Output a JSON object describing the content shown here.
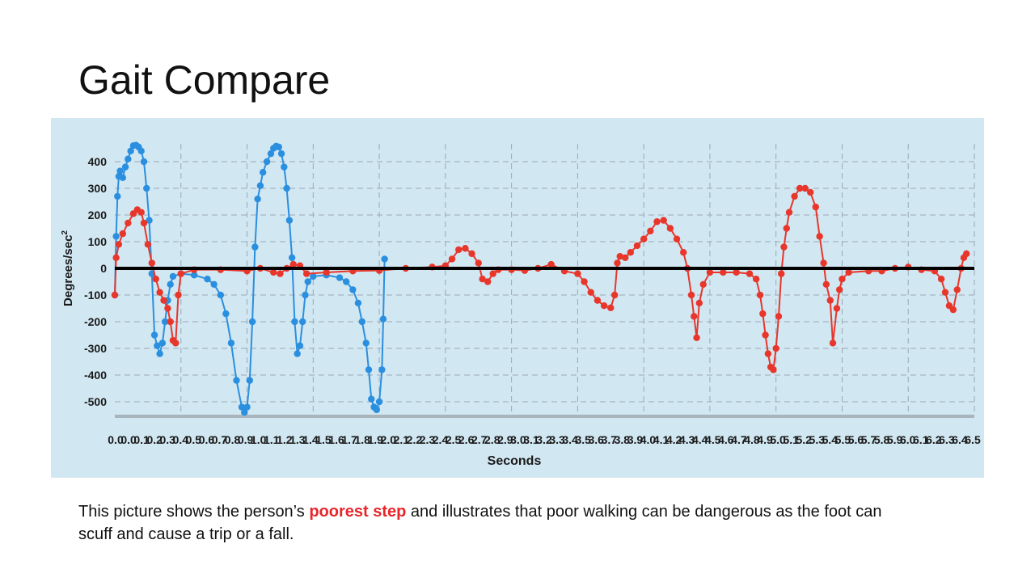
{
  "slide": {
    "title": "Gait Compare",
    "caption_before": "This picture shows the person’s ",
    "caption_highlight": "poorest step",
    "caption_after": " and illustrates that poor walking can be dangerous as the foot  can scuff and cause a trip or a fall."
  },
  "colors": {
    "panel_background": "#d1e7f2",
    "series_blue": "#2b8fe0",
    "series_red": "#e8362b",
    "zero_line": "#000000",
    "grid": "#9aaab4",
    "caption_highlight": "#e8262b"
  },
  "chart_data": {
    "type": "scatter",
    "xlabel": "Seconds",
    "ylabel": "Degrees/sec²",
    "ylabel_main": "Degrees/sec",
    "ylabel_sup": "2",
    "ylim": [
      -550,
      480
    ],
    "xlim": [
      0,
      6.5
    ],
    "yticks": [
      400,
      300,
      200,
      100,
      0,
      -100,
      -200,
      -300,
      -400,
      -500
    ],
    "ytick_labels": [
      "400",
      "300",
      "200",
      "100",
      "0",
      "-100",
      "-200",
      "-300",
      "-400",
      "-500"
    ],
    "xtick_labels": [
      "0.0",
      "0.0",
      "0.1",
      "0.2",
      "0.3",
      "0.4",
      "0.5",
      "0.6",
      "0.7",
      "0.8",
      "0.9",
      "1.0",
      "1.1",
      "1.2",
      "1.3",
      "1.4",
      "1.5",
      "1.6",
      "1.7",
      "1.8",
      "1.9",
      "2.0",
      "2.1",
      "2.2",
      "2.3",
      "2.4",
      "2.5",
      "2.6",
      "2.7",
      "2.8",
      "2.9",
      "3.0",
      "3.1",
      "3.2",
      "3.3",
      "3.4",
      "3.5",
      "3.6",
      "3.7",
      "3.8",
      "3.9",
      "4.0",
      "4.1",
      "4.2",
      "4.3",
      "4.4",
      "4.5",
      "4.6",
      "4.7",
      "4.8",
      "4.9",
      "5.0",
      "5.1",
      "5.2",
      "5.3",
      "5.4",
      "5.5",
      "5.6",
      "5.7",
      "5.8",
      "5.9",
      "6.0",
      "6.1",
      "6.2",
      "6.3",
      "6.4",
      "6.5"
    ],
    "grid": true,
    "zero_line": true,
    "series": [
      {
        "color": "#2b8fe0",
        "points": [
          [
            0.0,
            -100
          ],
          [
            0.01,
            120
          ],
          [
            0.02,
            270
          ],
          [
            0.03,
            345
          ],
          [
            0.04,
            365
          ],
          [
            0.06,
            340
          ],
          [
            0.08,
            380
          ],
          [
            0.1,
            410
          ],
          [
            0.12,
            440
          ],
          [
            0.14,
            460
          ],
          [
            0.16,
            462
          ],
          [
            0.18,
            455
          ],
          [
            0.2,
            440
          ],
          [
            0.22,
            400
          ],
          [
            0.24,
            300
          ],
          [
            0.26,
            180
          ],
          [
            0.28,
            -20
          ],
          [
            0.3,
            -250
          ],
          [
            0.32,
            -290
          ],
          [
            0.34,
            -320
          ],
          [
            0.36,
            -280
          ],
          [
            0.38,
            -200
          ],
          [
            0.4,
            -120
          ],
          [
            0.42,
            -60
          ],
          [
            0.44,
            -30
          ],
          [
            0.5,
            -20
          ],
          [
            0.6,
            -25
          ],
          [
            0.7,
            -40
          ],
          [
            0.75,
            -60
          ],
          [
            0.8,
            -100
          ],
          [
            0.84,
            -170
          ],
          [
            0.88,
            -280
          ],
          [
            0.92,
            -420
          ],
          [
            0.96,
            -520
          ],
          [
            0.98,
            -540
          ],
          [
            1.0,
            -520
          ],
          [
            1.02,
            -420
          ],
          [
            1.04,
            -200
          ],
          [
            1.06,
            80
          ],
          [
            1.08,
            260
          ],
          [
            1.1,
            310
          ],
          [
            1.12,
            360
          ],
          [
            1.15,
            400
          ],
          [
            1.18,
            430
          ],
          [
            1.2,
            450
          ],
          [
            1.22,
            458
          ],
          [
            1.24,
            455
          ],
          [
            1.26,
            430
          ],
          [
            1.28,
            380
          ],
          [
            1.3,
            300
          ],
          [
            1.32,
            180
          ],
          [
            1.34,
            40
          ],
          [
            1.36,
            -200
          ],
          [
            1.38,
            -320
          ],
          [
            1.4,
            -290
          ],
          [
            1.42,
            -200
          ],
          [
            1.44,
            -100
          ],
          [
            1.46,
            -50
          ],
          [
            1.5,
            -30
          ],
          [
            1.6,
            -25
          ],
          [
            1.7,
            -35
          ],
          [
            1.75,
            -50
          ],
          [
            1.8,
            -80
          ],
          [
            1.84,
            -130
          ],
          [
            1.87,
            -200
          ],
          [
            1.9,
            -280
          ],
          [
            1.92,
            -380
          ],
          [
            1.94,
            -490
          ],
          [
            1.96,
            -520
          ],
          [
            1.98,
            -530
          ],
          [
            2.0,
            -500
          ],
          [
            2.02,
            -380
          ],
          [
            2.03,
            -190
          ],
          [
            2.04,
            35
          ]
        ]
      },
      {
        "color": "#e8362b",
        "points": [
          [
            0.0,
            -100
          ],
          [
            0.01,
            40
          ],
          [
            0.03,
            90
          ],
          [
            0.06,
            130
          ],
          [
            0.1,
            170
          ],
          [
            0.14,
            205
          ],
          [
            0.17,
            220
          ],
          [
            0.2,
            210
          ],
          [
            0.22,
            170
          ],
          [
            0.25,
            90
          ],
          [
            0.28,
            20
          ],
          [
            0.31,
            -40
          ],
          [
            0.34,
            -90
          ],
          [
            0.37,
            -120
          ],
          [
            0.4,
            -150
          ],
          [
            0.42,
            -200
          ],
          [
            0.44,
            -270
          ],
          [
            0.46,
            -280
          ],
          [
            0.48,
            -100
          ],
          [
            0.5,
            -20
          ],
          [
            0.6,
            -5
          ],
          [
            0.8,
            -5
          ],
          [
            1.0,
            -10
          ],
          [
            1.1,
            0
          ],
          [
            1.2,
            -15
          ],
          [
            1.25,
            -20
          ],
          [
            1.3,
            0
          ],
          [
            1.35,
            15
          ],
          [
            1.4,
            10
          ],
          [
            1.45,
            -20
          ],
          [
            1.6,
            -15
          ],
          [
            1.8,
            -10
          ],
          [
            2.0,
            -8
          ],
          [
            2.2,
            0
          ],
          [
            2.4,
            5
          ],
          [
            2.5,
            10
          ],
          [
            2.55,
            35
          ],
          [
            2.6,
            70
          ],
          [
            2.65,
            75
          ],
          [
            2.7,
            55
          ],
          [
            2.75,
            20
          ],
          [
            2.78,
            -40
          ],
          [
            2.82,
            -50
          ],
          [
            2.86,
            -20
          ],
          [
            2.9,
            -5
          ],
          [
            3.0,
            -5
          ],
          [
            3.1,
            -8
          ],
          [
            3.2,
            0
          ],
          [
            3.3,
            15
          ],
          [
            3.4,
            -10
          ],
          [
            3.5,
            -20
          ],
          [
            3.55,
            -50
          ],
          [
            3.6,
            -90
          ],
          [
            3.65,
            -120
          ],
          [
            3.7,
            -140
          ],
          [
            3.75,
            -148
          ],
          [
            3.78,
            -100
          ],
          [
            3.8,
            20
          ],
          [
            3.82,
            45
          ],
          [
            3.86,
            40
          ],
          [
            3.9,
            60
          ],
          [
            3.95,
            85
          ],
          [
            4.0,
            110
          ],
          [
            4.05,
            140
          ],
          [
            4.1,
            175
          ],
          [
            4.15,
            180
          ],
          [
            4.2,
            150
          ],
          [
            4.25,
            110
          ],
          [
            4.3,
            60
          ],
          [
            4.33,
            0
          ],
          [
            4.36,
            -100
          ],
          [
            4.38,
            -180
          ],
          [
            4.4,
            -260
          ],
          [
            4.42,
            -130
          ],
          [
            4.45,
            -60
          ],
          [
            4.5,
            -15
          ],
          [
            4.6,
            -15
          ],
          [
            4.7,
            -15
          ],
          [
            4.8,
            -20
          ],
          [
            4.85,
            -40
          ],
          [
            4.88,
            -100
          ],
          [
            4.9,
            -170
          ],
          [
            4.92,
            -250
          ],
          [
            4.94,
            -320
          ],
          [
            4.96,
            -370
          ],
          [
            4.98,
            -380
          ],
          [
            5.0,
            -300
          ],
          [
            5.02,
            -180
          ],
          [
            5.04,
            -20
          ],
          [
            5.06,
            80
          ],
          [
            5.08,
            150
          ],
          [
            5.1,
            210
          ],
          [
            5.14,
            270
          ],
          [
            5.18,
            300
          ],
          [
            5.22,
            300
          ],
          [
            5.26,
            285
          ],
          [
            5.3,
            230
          ],
          [
            5.33,
            120
          ],
          [
            5.36,
            20
          ],
          [
            5.38,
            -60
          ],
          [
            5.41,
            -120
          ],
          [
            5.43,
            -280
          ],
          [
            5.46,
            -150
          ],
          [
            5.48,
            -80
          ],
          [
            5.5,
            -40
          ],
          [
            5.55,
            -15
          ],
          [
            5.7,
            -10
          ],
          [
            5.8,
            -10
          ],
          [
            5.9,
            0
          ],
          [
            6.0,
            5
          ],
          [
            6.1,
            -5
          ],
          [
            6.2,
            -10
          ],
          [
            6.25,
            -40
          ],
          [
            6.28,
            -90
          ],
          [
            6.31,
            -140
          ],
          [
            6.34,
            -155
          ],
          [
            6.37,
            -80
          ],
          [
            6.4,
            0
          ],
          [
            6.42,
            40
          ],
          [
            6.44,
            55
          ]
        ]
      }
    ]
  }
}
